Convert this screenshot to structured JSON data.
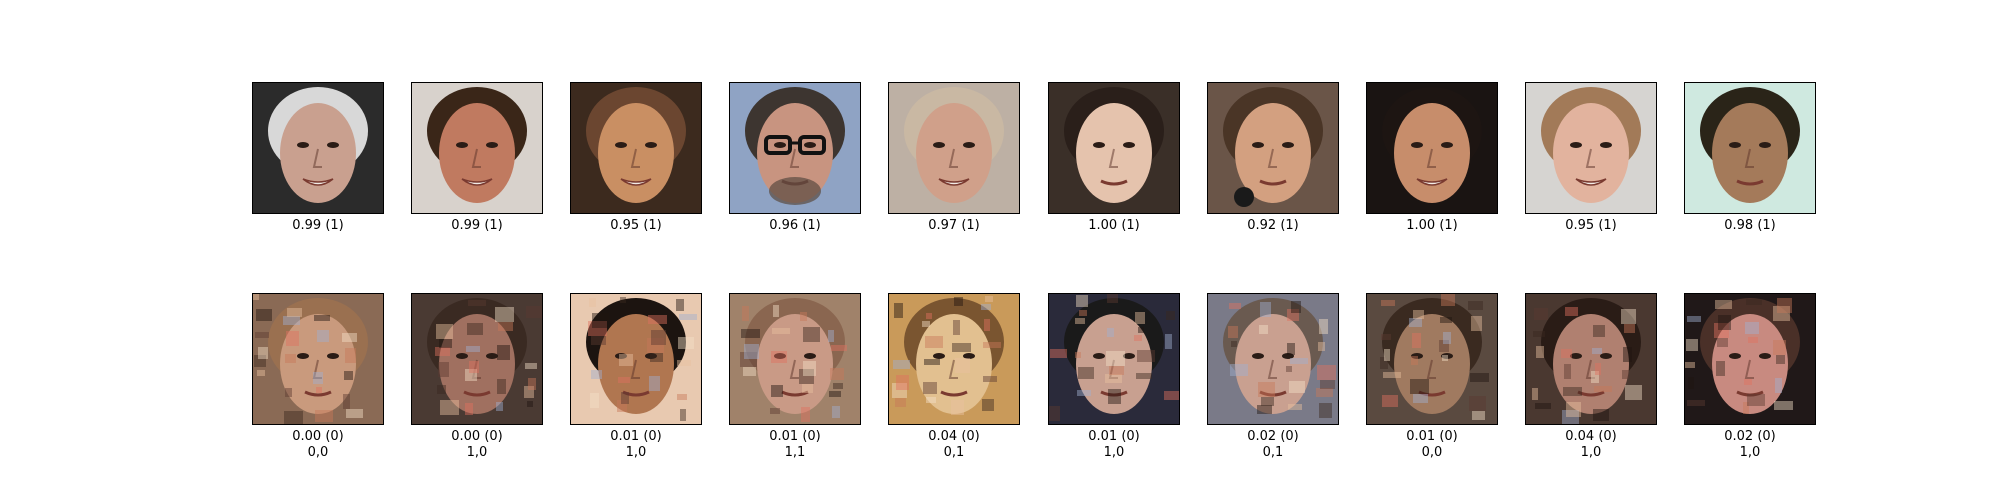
{
  "real_row": {
    "items": [
      {
        "score": "0.99 (1)",
        "bg": "#2b2b2b",
        "skin": "#c9a08f",
        "hair": "#d8d8d8",
        "extra": "smile"
      },
      {
        "score": "0.99 (1)",
        "bg": "#d8d2cc",
        "skin": "#c07a60",
        "hair": "#3a2618",
        "extra": "smile"
      },
      {
        "score": "0.95 (1)",
        "bg": "#3c2a1e",
        "skin": "#c98f63",
        "hair": "#6b4630",
        "extra": "smile"
      },
      {
        "score": "0.96 (1)",
        "bg": "#8fa3c4",
        "skin": "#c89480",
        "hair": "#3d3530",
        "extra": "glasses"
      },
      {
        "score": "0.97 (1)",
        "bg": "#bdb0a4",
        "skin": "#d0a08a",
        "hair": "#c9b8a3",
        "extra": "smile"
      },
      {
        "score": "1.00 (1)",
        "bg": "#3a2f28",
        "skin": "#e5c3ad",
        "hair": "#2a1f1a",
        "extra": "plain"
      },
      {
        "score": "0.92 (1)",
        "bg": "#6a5548",
        "skin": "#d3a080",
        "hair": "#4a3526",
        "extra": "mic"
      },
      {
        "score": "1.00 (1)",
        "bg": "#1a1412",
        "skin": "#c78d6b",
        "hair": "#1d1512",
        "extra": "smile"
      },
      {
        "score": "0.95 (1)",
        "bg": "#d6d4d1",
        "skin": "#e2b39e",
        "hair": "#a27a58",
        "extra": "smile"
      },
      {
        "score": "0.98 (1)",
        "bg": "#cfe9e0",
        "skin": "#a47a5a",
        "hair": "#2a2418",
        "extra": "plain"
      }
    ]
  },
  "fake_row": {
    "items": [
      {
        "score": "0.00 (0)",
        "label": "0,0",
        "bg": "#8a6a55",
        "skin": "#c99a7d",
        "hair": "#9a7050"
      },
      {
        "score": "0.00 (0)",
        "label": "1,0",
        "bg": "#4a3a33",
        "skin": "#a07060",
        "hair": "#3a2a22"
      },
      {
        "score": "0.01 (0)",
        "label": "1,0",
        "bg": "#e8c9b0",
        "skin": "#b07650",
        "hair": "#1c1410"
      },
      {
        "score": "0.01 (0)",
        "label": "1,1",
        "bg": "#a0826a",
        "skin": "#c99a86",
        "hair": "#8a6650"
      },
      {
        "score": "0.04 (0)",
        "label": "0,1",
        "bg": "#c99a5a",
        "skin": "#e2c090",
        "hair": "#7a5530"
      },
      {
        "score": "0.01 (0)",
        "label": "1,0",
        "bg": "#2a2a3a",
        "skin": "#c8a090",
        "hair": "#1a1a1a"
      },
      {
        "score": "0.02 (0)",
        "label": "0,1",
        "bg": "#7a7a88",
        "skin": "#c9a090",
        "hair": "#6a5a50"
      },
      {
        "score": "0.01 (0)",
        "label": "0,0",
        "bg": "#5a4a40",
        "skin": "#a07a60",
        "hair": "#3a2a20"
      },
      {
        "score": "0.04 (0)",
        "label": "1,0",
        "bg": "#4a3830",
        "skin": "#b08070",
        "hair": "#2a1c16"
      },
      {
        "score": "0.02 (0)",
        "label": "1,0",
        "bg": "#201818",
        "skin": "#c88a80",
        "hair": "#4a3028"
      }
    ]
  }
}
